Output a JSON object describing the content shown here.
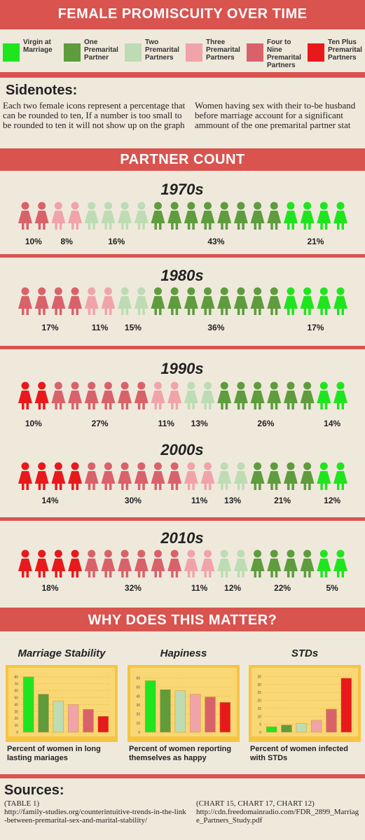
{
  "header": {
    "title": "FEMALE PROMISCUITY OVER TIME"
  },
  "legend": [
    {
      "label": "Virgin at Marriage",
      "color": "#1fe51f"
    },
    {
      "label": "One Premarital Partner",
      "color": "#5e9c3e"
    },
    {
      "label": "Two Premarital Partners",
      "color": "#bddcb3"
    },
    {
      "label": "Three Premarital Partners",
      "color": "#f0a4aa"
    },
    {
      "label": "Four to Nine Premarital Partners",
      "color": "#d9626a"
    },
    {
      "label": "Ten Plus Premarital Partners",
      "color": "#e8191b"
    }
  ],
  "sidenotes": {
    "title": "Sidenotes:",
    "left": "Each two female icons represent a percentage that can be rounded to ten, If a number is too small to be rounded to ten it will not show up on the graph",
    "right": "Women having sex with their to-be husband before marriage account for a significant ammount of the one premarital partner stat"
  },
  "partner_count": {
    "title": "PARTNER COUNT",
    "decades": [
      {
        "label": "1970s",
        "segments": [
          {
            "color": "#d9626a",
            "icons": 2,
            "percent": "10%"
          },
          {
            "color": "#f0a4aa",
            "icons": 2,
            "percent": "8%"
          },
          {
            "color": "#bddcb3",
            "icons": 4,
            "percent": "16%"
          },
          {
            "color": "#5e9c3e",
            "icons": 8,
            "percent": "43%"
          },
          {
            "color": "#1fe51f",
            "icons": 4,
            "percent": "21%"
          }
        ]
      },
      {
        "label": "1980s",
        "segments": [
          {
            "color": "#d9626a",
            "icons": 4,
            "percent": "17%"
          },
          {
            "color": "#f0a4aa",
            "icons": 2,
            "percent": "11%"
          },
          {
            "color": "#bddcb3",
            "icons": 2,
            "percent": "15%"
          },
          {
            "color": "#5e9c3e",
            "icons": 8,
            "percent": "36%"
          },
          {
            "color": "#1fe51f",
            "icons": 4,
            "percent": "17%"
          }
        ]
      },
      {
        "label": "1990s",
        "segments": [
          {
            "color": "#e8191b",
            "icons": 2,
            "percent": "10%"
          },
          {
            "color": "#d9626a",
            "icons": 6,
            "percent": "27%"
          },
          {
            "color": "#f0a4aa",
            "icons": 2,
            "percent": "11%"
          },
          {
            "color": "#bddcb3",
            "icons": 2,
            "percent": "13%"
          },
          {
            "color": "#5e9c3e",
            "icons": 6,
            "percent": "26%"
          },
          {
            "color": "#1fe51f",
            "icons": 2,
            "percent": "14%"
          }
        ]
      },
      {
        "label": "2000s",
        "segments": [
          {
            "color": "#e8191b",
            "icons": 4,
            "percent": "14%"
          },
          {
            "color": "#d9626a",
            "icons": 6,
            "percent": "30%"
          },
          {
            "color": "#f0a4aa",
            "icons": 2,
            "percent": "11%"
          },
          {
            "color": "#bddcb3",
            "icons": 2,
            "percent": "13%"
          },
          {
            "color": "#5e9c3e",
            "icons": 4,
            "percent": "21%"
          },
          {
            "color": "#1fe51f",
            "icons": 2,
            "percent": "12%"
          }
        ]
      },
      {
        "label": "2010s",
        "segments": [
          {
            "color": "#e8191b",
            "icons": 4,
            "percent": "18%"
          },
          {
            "color": "#d9626a",
            "icons": 6,
            "percent": "32%"
          },
          {
            "color": "#f0a4aa",
            "icons": 2,
            "percent": "11%"
          },
          {
            "color": "#bddcb3",
            "icons": 2,
            "percent": "12%"
          },
          {
            "color": "#5e9c3e",
            "icons": 4,
            "percent": "22%"
          },
          {
            "color": "#1fe51f",
            "icons": 2,
            "percent": "5%"
          }
        ]
      }
    ]
  },
  "why": {
    "title": "WHY DOES THIS MATTER?",
    "charts": [
      {
        "type": "bar",
        "title": "Marriage Stability",
        "caption": "Percent of women in long lasting mariages",
        "values": [
          80,
          55,
          45,
          40,
          33,
          23
        ],
        "ylim": [
          0,
          85
        ],
        "yticks": [
          0,
          10,
          20,
          30,
          40,
          50,
          60,
          70,
          80
        ]
      },
      {
        "type": "bar",
        "title": "Hapiness",
        "caption": "Percent of women reporting themselves as happy",
        "values": [
          57,
          47,
          46,
          42,
          39,
          33
        ],
        "ylim": [
          0,
          65
        ],
        "yticks": [
          0,
          10,
          20,
          30,
          40,
          50,
          60
        ]
      },
      {
        "type": "bar",
        "title": "STDs",
        "caption": "Percent of women infected with STDs",
        "values": [
          3.5,
          4.5,
          5.5,
          7.5,
          14.5,
          34
        ],
        "ylim": [
          0,
          37
        ],
        "yticks": [
          0,
          5,
          10,
          15,
          20,
          25,
          30,
          35
        ]
      }
    ]
  },
  "sources": {
    "title": "Sources:",
    "left_label": "(TABLE 1)",
    "left_url": "http://family-studies.org/counterintuitive-trends-in-the-link-between-premarital-sex-and-marital-stability/",
    "right_label": "(CHART 15, CHART 17, CHART 12)",
    "right_url": "http://cdn.freedomainradio.com/FDR_2899_Marriage_Partners_Study.pdf"
  }
}
